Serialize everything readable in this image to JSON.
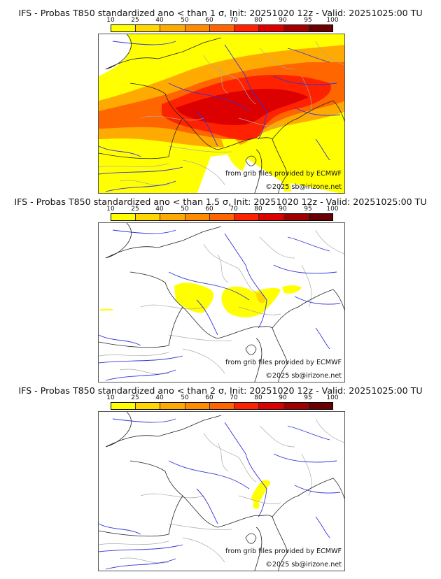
{
  "colorbar": {
    "ticks": [
      "10",
      "25",
      "40",
      "50",
      "60",
      "70",
      "80",
      "90",
      "95",
      "100"
    ],
    "colors": [
      "#ffff00",
      "#ffd700",
      "#ffaa00",
      "#ff8c00",
      "#ff6600",
      "#ff2200",
      "#dd0000",
      "#a00000",
      "#6b0000"
    ]
  },
  "panels": [
    {
      "title": "IFS - Probas T850  standardized ano < than 1 σ, Init: 20251020 12z - Valid: 20251025:00 TU",
      "threshold": "1 σ",
      "credit_source": "from grib files provided by ECMWF",
      "credit_copyright": "©2025 sb@irizone.net"
    },
    {
      "title": "IFS - Probas T850  standardized ano < than 1.5 σ, Init: 20251020 12z - Valid: 20251025:00 TU",
      "threshold": "1.5 σ",
      "credit_source": "from grib files provided by ECMWF",
      "credit_copyright": "©2025 sb@irizone.net"
    },
    {
      "title": "IFS - Probas T850  standardized ano < than 2 σ, Init: 20251020 12z - Valid: 20251025:00 TU",
      "threshold": "2 σ",
      "credit_source": "from grib files provided by ECMWF",
      "credit_copyright": "©2025 sb@irizone.net"
    }
  ],
  "map_colors": {
    "coast": "#222222",
    "river": "#3333dd",
    "border": "#aaaaaa"
  }
}
